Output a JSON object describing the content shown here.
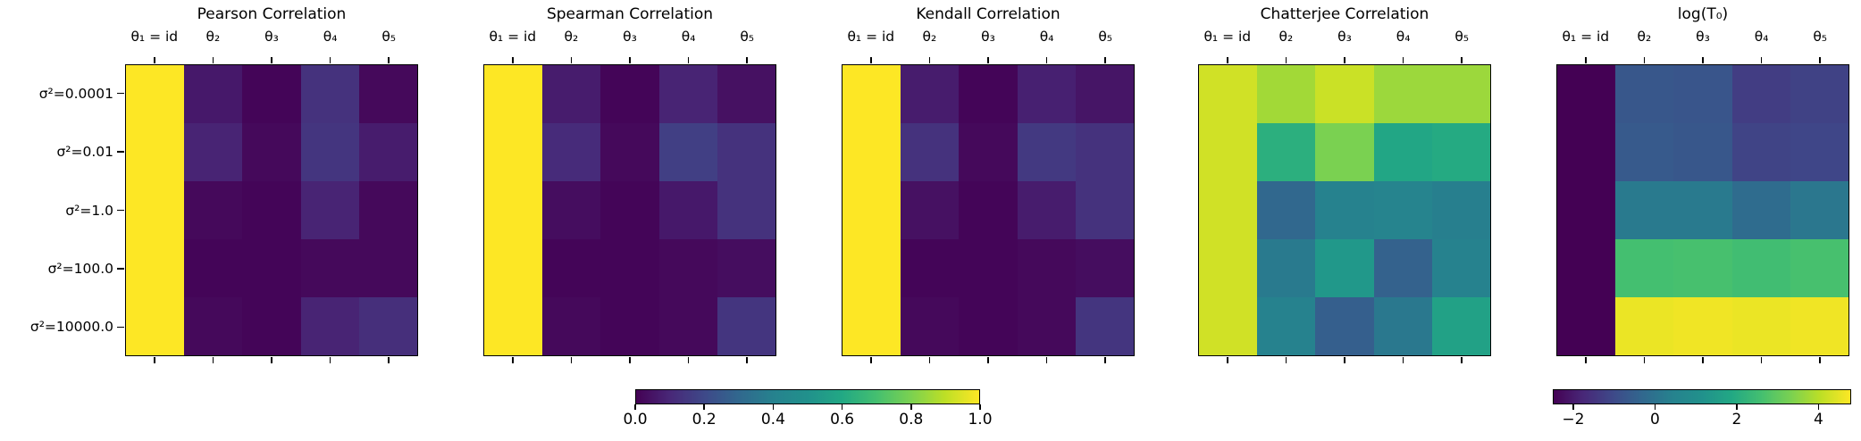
{
  "colormap": "viridis",
  "row_labels": [
    "σ²=0.0001",
    "σ²=0.01",
    "σ²=1.0",
    "σ²=100.0",
    "σ²=10000.0"
  ],
  "col_labels": [
    "θ₁ = id",
    "θ₂",
    "θ₃",
    "θ₄",
    "θ₅"
  ],
  "chart_data": [
    {
      "type": "heatmap",
      "title": "Pearson Correlation",
      "vmin": 0.0,
      "vmax": 1.0,
      "rows": [
        "σ²=0.0001",
        "σ²=0.01",
        "σ²=1.0",
        "σ²=100.0",
        "σ²=10000.0"
      ],
      "cols": [
        "θ₁ = id",
        "θ₂",
        "θ₃",
        "θ₄",
        "θ₅"
      ],
      "values": [
        [
          1.0,
          0.06,
          0.01,
          0.13,
          0.02
        ],
        [
          1.0,
          0.09,
          0.02,
          0.14,
          0.07
        ],
        [
          1.0,
          0.02,
          0.01,
          0.09,
          0.02
        ],
        [
          1.0,
          0.01,
          0.01,
          0.02,
          0.02
        ],
        [
          1.0,
          0.02,
          0.01,
          0.09,
          0.12
        ]
      ]
    },
    {
      "type": "heatmap",
      "title": "Spearman Correlation",
      "vmin": 0.0,
      "vmax": 1.0,
      "rows": [
        "σ²=0.0001",
        "σ²=0.01",
        "σ²=1.0",
        "σ²=100.0",
        "σ²=10000.0"
      ],
      "cols": [
        "θ₁ = id",
        "θ₂",
        "θ₃",
        "θ₄",
        "θ₅"
      ],
      "values": [
        [
          1.0,
          0.07,
          0.01,
          0.09,
          0.04
        ],
        [
          1.0,
          0.11,
          0.02,
          0.17,
          0.13
        ],
        [
          1.0,
          0.03,
          0.01,
          0.06,
          0.13
        ],
        [
          1.0,
          0.01,
          0.01,
          0.02,
          0.03
        ],
        [
          1.0,
          0.02,
          0.01,
          0.02,
          0.14
        ]
      ]
    },
    {
      "type": "heatmap",
      "title": "Kendall Correlation",
      "vmin": 0.0,
      "vmax": 1.0,
      "rows": [
        "σ²=0.0001",
        "σ²=0.01",
        "σ²=1.0",
        "σ²=100.0",
        "σ²=10000.0"
      ],
      "cols": [
        "θ₁ = id",
        "θ₂",
        "θ₃",
        "θ₄",
        "θ₅"
      ],
      "values": [
        [
          1.0,
          0.07,
          0.01,
          0.08,
          0.05
        ],
        [
          1.0,
          0.13,
          0.02,
          0.15,
          0.13
        ],
        [
          1.0,
          0.04,
          0.01,
          0.07,
          0.13
        ],
        [
          1.0,
          0.01,
          0.01,
          0.02,
          0.03
        ],
        [
          1.0,
          0.02,
          0.01,
          0.02,
          0.14
        ]
      ]
    },
    {
      "type": "heatmap",
      "title": "Chatterjee Correlation",
      "vmin": 0.0,
      "vmax": 1.0,
      "rows": [
        "σ²=0.0001",
        "σ²=0.01",
        "σ²=1.0",
        "σ²=100.0",
        "σ²=10000.0"
      ],
      "cols": [
        "θ₁ = id",
        "θ₂",
        "θ₃",
        "θ₄",
        "θ₅"
      ],
      "values": [
        [
          0.93,
          0.86,
          0.92,
          0.85,
          0.85
        ],
        [
          0.93,
          0.63,
          0.8,
          0.59,
          0.61
        ],
        [
          0.93,
          0.3,
          0.4,
          0.41,
          0.39
        ],
        [
          0.93,
          0.37,
          0.53,
          0.28,
          0.4
        ],
        [
          0.93,
          0.4,
          0.27,
          0.36,
          0.57
        ]
      ]
    },
    {
      "type": "heatmap",
      "title": "log(T₀)",
      "vmin": -2.5,
      "vmax": 4.8,
      "rows": [
        "σ²=0.0001",
        "σ²=0.01",
        "σ²=1.0",
        "σ²=100.0",
        "σ²=10000.0"
      ],
      "cols": [
        "θ₁ = id",
        "θ₂",
        "θ₃",
        "θ₄",
        "θ₅"
      ],
      "values": [
        [
          -2.5,
          -0.7,
          -0.75,
          -1.3,
          -1.2
        ],
        [
          -2.5,
          -0.65,
          -0.7,
          -1.15,
          -1.1
        ],
        [
          -2.5,
          0.2,
          0.2,
          -0.2,
          0.1
        ],
        [
          -2.5,
          2.6,
          2.65,
          2.55,
          2.65
        ],
        [
          -2.5,
          4.6,
          4.65,
          4.6,
          4.65
        ]
      ]
    }
  ],
  "colorbars": [
    {
      "vmin": 0.0,
      "vmax": 1.0,
      "tick_values": [
        0.0,
        0.2,
        0.4,
        0.6,
        0.8,
        1.0
      ],
      "tick_labels": [
        "0.0",
        "0.2",
        "0.4",
        "0.6",
        "0.8",
        "1.0"
      ]
    },
    {
      "vmin": -2.5,
      "vmax": 4.8,
      "tick_values": [
        -2,
        0,
        2,
        4
      ],
      "tick_labels": [
        "−2",
        "0",
        "2",
        "4"
      ]
    }
  ]
}
